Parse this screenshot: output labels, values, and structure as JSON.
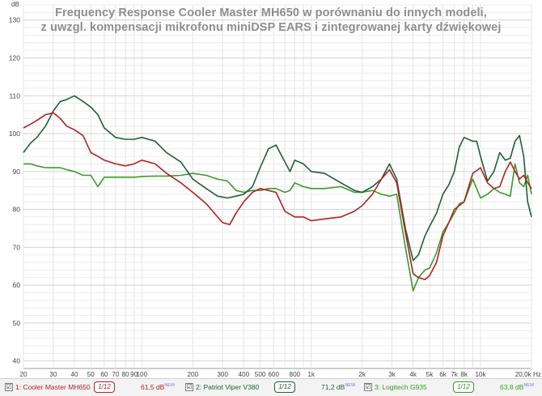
{
  "title": {
    "line1": "Frequency Response Cooler Master MH650 w porównaniu do innych modeli,",
    "line2": "z uwzgl. kompensacji mikrofonu miniDSP EARS i zintegrowanej karty dźwiękowej"
  },
  "chart_data": {
    "type": "line",
    "xscale": "log",
    "xlim": [
      20,
      20000
    ],
    "ylim": [
      38,
      134
    ],
    "ylabel": "dB",
    "grid": true,
    "legend_placement": "bottom",
    "x_ticks": [
      {
        "value": 20,
        "label": "20"
      },
      {
        "value": 30,
        "label": "30"
      },
      {
        "value": 40,
        "label": "40"
      },
      {
        "value": 50,
        "label": "50"
      },
      {
        "value": 60,
        "label": "60"
      },
      {
        "value": 70,
        "label": "70"
      },
      {
        "value": 80,
        "label": "80"
      },
      {
        "value": 90,
        "label": "90"
      },
      {
        "value": 100,
        "label": "100"
      },
      {
        "value": 200,
        "label": "200"
      },
      {
        "value": 300,
        "label": "300"
      },
      {
        "value": 400,
        "label": "400"
      },
      {
        "value": 500,
        "label": "500"
      },
      {
        "value": 600,
        "label": "600"
      },
      {
        "value": 800,
        "label": "800"
      },
      {
        "value": 1000,
        "label": "1k"
      },
      {
        "value": 2000,
        "label": "2k"
      },
      {
        "value": 3000,
        "label": "3k"
      },
      {
        "value": 4000,
        "label": "4k"
      },
      {
        "value": 5000,
        "label": "5k"
      },
      {
        "value": 6000,
        "label": "6k"
      },
      {
        "value": 7000,
        "label": "7k"
      },
      {
        "value": 8000,
        "label": "8k"
      },
      {
        "value": 10000,
        "label": "10k"
      },
      {
        "value": 20000,
        "label": "20,0k Hz"
      }
    ],
    "y_ticks": [
      40,
      50,
      60,
      70,
      80,
      90,
      100,
      110,
      120,
      130
    ],
    "series": [
      {
        "name": "1: Cooler Master MH650",
        "color": "#b22222",
        "smoothing": "1/12",
        "level": "61,5 dB",
        "x": [
          20,
          22,
          24,
          27,
          30,
          33,
          36,
          40,
          45,
          50,
          55,
          60,
          70,
          80,
          90,
          100,
          120,
          140,
          170,
          200,
          240,
          280,
          300,
          330,
          360,
          400,
          450,
          500,
          560,
          620,
          700,
          800,
          900,
          1000,
          1200,
          1500,
          1800,
          2000,
          2300,
          2600,
          2900,
          3200,
          3600,
          4000,
          4300,
          4700,
          5000,
          5500,
          6000,
          6500,
          7000,
          7500,
          8000,
          9000,
          10000,
          11000,
          12000,
          13000,
          14000,
          15000,
          16000,
          17000,
          18000,
          19000,
          20000
        ],
        "y": [
          101.5,
          102.5,
          103.5,
          105,
          105.5,
          104,
          102,
          101,
          99.5,
          95,
          94,
          93,
          92,
          91.5,
          92,
          93,
          92,
          89.5,
          87,
          84.5,
          81.5,
          78,
          76.5,
          76,
          79,
          82,
          84.5,
          85.5,
          85,
          84.5,
          79.5,
          78,
          78,
          77,
          77.5,
          78,
          79.5,
          81,
          84,
          88,
          90.5,
          87,
          74,
          63,
          62,
          61.5,
          62.5,
          66,
          73,
          76.5,
          80,
          81,
          82,
          89.5,
          91,
          87,
          85.5,
          86,
          90,
          92.5,
          90,
          88,
          89,
          87,
          85.5
        ]
      },
      {
        "name": "2: Patriot Viper V380",
        "color": "#1e5e3c",
        "smoothing": "1/12",
        "level": "71,2 dB",
        "x": [
          20,
          22,
          24,
          27,
          30,
          33,
          36,
          40,
          45,
          50,
          55,
          60,
          70,
          80,
          90,
          100,
          120,
          140,
          170,
          200,
          240,
          280,
          320,
          360,
          400,
          450,
          500,
          560,
          620,
          700,
          750,
          800,
          900,
          1000,
          1200,
          1500,
          1800,
          2000,
          2300,
          2600,
          2900,
          3200,
          3600,
          4000,
          4300,
          4700,
          5000,
          5500,
          6000,
          6500,
          7000,
          7500,
          8000,
          9000,
          9500,
          10000,
          11000,
          12000,
          13000,
          14000,
          15000,
          16000,
          17000,
          18000,
          19000,
          20000
        ],
        "y": [
          95,
          97.5,
          99,
          102,
          106,
          108.5,
          109,
          110,
          108.5,
          107,
          105,
          101.5,
          99,
          98.5,
          98.5,
          99,
          98,
          95,
          92.5,
          88,
          85.5,
          83.5,
          83,
          83.5,
          84,
          86,
          91,
          96,
          97,
          92.5,
          90,
          93,
          92,
          90,
          89.5,
          87,
          85,
          84.5,
          86,
          88,
          92,
          88,
          75,
          66.5,
          68,
          73,
          75.5,
          79,
          84,
          86.5,
          90,
          96.5,
          99,
          98,
          98,
          94,
          87.5,
          90,
          95,
          93,
          93.5,
          98,
          99.5,
          94,
          82,
          78
        ]
      },
      {
        "name": "3: Logitech G935",
        "color": "#3a9a2a",
        "smoothing": "1/12",
        "level": "63,8 dB",
        "x": [
          20,
          22,
          24,
          27,
          30,
          33,
          36,
          40,
          45,
          50,
          55,
          60,
          70,
          80,
          90,
          100,
          120,
          140,
          170,
          200,
          240,
          280,
          320,
          360,
          400,
          450,
          500,
          560,
          620,
          700,
          750,
          800,
          900,
          1000,
          1200,
          1500,
          1800,
          2000,
          2300,
          2600,
          2900,
          3200,
          3600,
          4000,
          4300,
          4700,
          5000,
          5500,
          6000,
          6500,
          7000,
          7500,
          8000,
          9000,
          10000,
          11000,
          12000,
          13000,
          14000,
          15000,
          16000,
          17000,
          18000,
          19000,
          20000
        ],
        "y": [
          92,
          92,
          91.5,
          91,
          91,
          91,
          90.5,
          90,
          89,
          89,
          86,
          88.5,
          88.5,
          88.5,
          88.5,
          88.7,
          88.8,
          88.8,
          89,
          89.5,
          89,
          88,
          87.5,
          85,
          84.5,
          85,
          85,
          85.5,
          85.5,
          84.5,
          85,
          87,
          86,
          85.5,
          85.5,
          86,
          84.5,
          84.5,
          85,
          84,
          83.5,
          84,
          70,
          58.5,
          62,
          64,
          64.5,
          68.5,
          74,
          76.5,
          79,
          81.5,
          82,
          88,
          83,
          84,
          85.5,
          84.5,
          84,
          83.5,
          92,
          87,
          86,
          89,
          84
        ]
      }
    ]
  },
  "legend": [
    {
      "checkbox": "☑",
      "name": "1: Cooler Master MH650",
      "smoothing": "1/12",
      "level": "61,5 dB",
      "new": "NEW"
    },
    {
      "checkbox": "☑",
      "name": "2: Patriot Viper V380",
      "smoothing": "1/12",
      "level": "71,2 dB",
      "new": "NEW"
    },
    {
      "checkbox": "☑",
      "name": "3: Logitech G935",
      "smoothing": "1/12",
      "level": "63,8 dB",
      "new": "NEW"
    }
  ]
}
